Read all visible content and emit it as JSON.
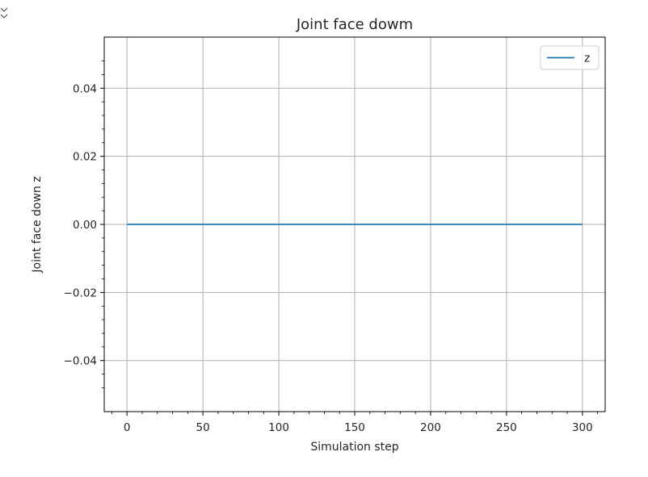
{
  "corner_icon": "expand-toggle-icon",
  "colors": {
    "series": "#1f77b4",
    "grid": "#b0b0b0",
    "axes": "#000000",
    "text": "#262626",
    "background": "#ffffff"
  },
  "chart_data": {
    "type": "line",
    "title": "Joint face dowm",
    "xlabel": "Simulation step",
    "ylabel": "Joint face down z",
    "xlim": [
      -15,
      315
    ],
    "ylim": [
      -0.055,
      0.055
    ],
    "xticks": [
      0,
      50,
      100,
      150,
      200,
      250,
      300
    ],
    "xtick_labels": [
      "0",
      "50",
      "100",
      "150",
      "200",
      "250",
      "300"
    ],
    "yticks": [
      0.04,
      0.02,
      0.0,
      -0.02,
      -0.04
    ],
    "ytick_labels": [
      "0.04",
      "0.02",
      "0.00",
      "−0.02",
      "−0.04"
    ],
    "grid": true,
    "legend_position": "top-right",
    "series": [
      {
        "name": "z",
        "x": [
          0,
          50,
          100,
          150,
          200,
          250,
          300
        ],
        "y": [
          0,
          0,
          0,
          0,
          0,
          0,
          0
        ]
      }
    ]
  }
}
